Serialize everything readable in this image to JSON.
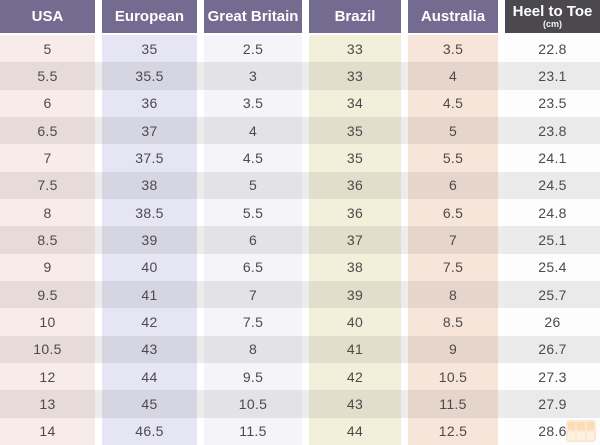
{
  "chart_data": {
    "type": "table",
    "columns": [
      {
        "label": "USA"
      },
      {
        "label": "European"
      },
      {
        "label": "Great Britain"
      },
      {
        "label": "Brazil"
      },
      {
        "label": "Australia"
      },
      {
        "label": "Heel to Toe",
        "sublabel": "(cm)"
      }
    ],
    "rows": [
      [
        "5",
        "35",
        "2.5",
        "33",
        "3.5",
        "22.8"
      ],
      [
        "5.5",
        "35.5",
        "3",
        "33",
        "4",
        "23.1"
      ],
      [
        "6",
        "36",
        "3.5",
        "34",
        "4.5",
        "23.5"
      ],
      [
        "6.5",
        "37",
        "4",
        "35",
        "5",
        "23.8"
      ],
      [
        "7",
        "37.5",
        "4.5",
        "35",
        "5.5",
        "24.1"
      ],
      [
        "7.5",
        "38",
        "5",
        "36",
        "6",
        "24.5"
      ],
      [
        "8",
        "38.5",
        "5.5",
        "36",
        "6.5",
        "24.8"
      ],
      [
        "8.5",
        "39",
        "6",
        "37",
        "7",
        "25.1"
      ],
      [
        "9",
        "40",
        "6.5",
        "38",
        "7.5",
        "25.4"
      ],
      [
        "9.5",
        "41",
        "7",
        "39",
        "8",
        "25.7"
      ],
      [
        "10",
        "42",
        "7.5",
        "40",
        "8.5",
        "26"
      ],
      [
        "10.5",
        "43",
        "8",
        "41",
        "9",
        "26.7"
      ],
      [
        "12",
        "44",
        "9.5",
        "42",
        "10.5",
        "27.3"
      ],
      [
        "13",
        "45",
        "10.5",
        "43",
        "11.5",
        "27.9"
      ],
      [
        "14",
        "46.5",
        "11.5",
        "44",
        "12.5",
        "28.6"
      ]
    ]
  },
  "colors": {
    "header_purple": "#736b90",
    "header_dark": "#4c494e",
    "column_tints": [
      "#f8ece9",
      "#e6e5f3",
      "#f4f4f9",
      "#f2f0da",
      "#f8e5da",
      "#fdfdfd"
    ],
    "stripe_overlay": "rgba(80,76,78,0.105)",
    "body_text": "#4e4a4c",
    "header_text": "#ffffff",
    "watermark_orange": "#e9a046"
  }
}
